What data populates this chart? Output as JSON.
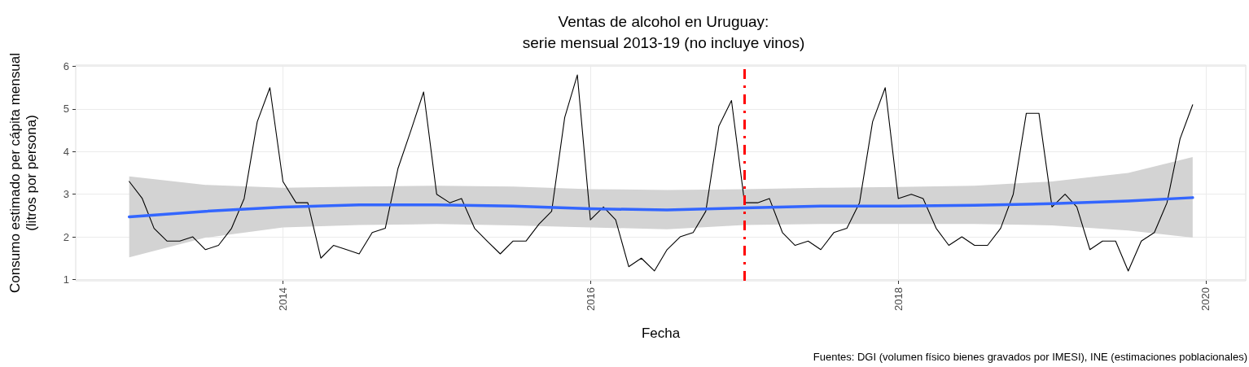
{
  "chart_data": {
    "type": "line",
    "title": "Ventas de alcohol en Uruguay:\nserie mensual 2013-19 (no incluye vinos)",
    "xlabel": "Fecha",
    "ylabel": "Consumo estimado per cápita mensual\n(litros por persona)",
    "annotations": [
      "Fuentes: DGI (volumen físico bienes gravados por IMESI), INE (estimaciones poblacionales)"
    ],
    "x": [
      "2013-01",
      "2013-02",
      "2013-03",
      "2013-04",
      "2013-05",
      "2013-06",
      "2013-07",
      "2013-08",
      "2013-09",
      "2013-10",
      "2013-11",
      "2013-12",
      "2014-01",
      "2014-02",
      "2014-03",
      "2014-04",
      "2014-05",
      "2014-06",
      "2014-07",
      "2014-08",
      "2014-09",
      "2014-10",
      "2014-11",
      "2014-12",
      "2015-01",
      "2015-02",
      "2015-03",
      "2015-04",
      "2015-05",
      "2015-06",
      "2015-07",
      "2015-08",
      "2015-09",
      "2015-10",
      "2015-11",
      "2015-12",
      "2016-01",
      "2016-02",
      "2016-03",
      "2016-04",
      "2016-05",
      "2016-06",
      "2016-07",
      "2016-08",
      "2016-09",
      "2016-10",
      "2016-11",
      "2016-12",
      "2017-01",
      "2017-02",
      "2017-03",
      "2017-04",
      "2017-05",
      "2017-06",
      "2017-07",
      "2017-08",
      "2017-09",
      "2017-10",
      "2017-11",
      "2017-12",
      "2018-01",
      "2018-02",
      "2018-03",
      "2018-04",
      "2018-05",
      "2018-06",
      "2018-07",
      "2018-08",
      "2018-09",
      "2018-10",
      "2018-11",
      "2018-12",
      "2019-01",
      "2019-02",
      "2019-03",
      "2019-04",
      "2019-05",
      "2019-06",
      "2019-07",
      "2019-08",
      "2019-09",
      "2019-10",
      "2019-11",
      "2019-12"
    ],
    "series": [
      {
        "color": "#000000",
        "values": [
          3.3,
          2.9,
          2.2,
          1.9,
          1.9,
          2.0,
          1.7,
          1.8,
          2.2,
          2.9,
          4.7,
          5.5,
          3.3,
          2.8,
          2.8,
          1.5,
          1.8,
          1.7,
          1.6,
          2.1,
          2.2,
          3.6,
          4.5,
          5.4,
          3.0,
          2.8,
          2.9,
          2.2,
          1.9,
          1.6,
          1.9,
          1.9,
          2.3,
          2.6,
          4.8,
          5.8,
          2.4,
          2.7,
          2.4,
          1.3,
          1.5,
          1.2,
          1.7,
          2.0,
          2.1,
          2.6,
          4.6,
          5.2,
          2.8,
          2.8,
          2.9,
          2.1,
          1.8,
          1.9,
          1.7,
          2.1,
          2.2,
          2.8,
          4.7,
          5.5,
          2.9,
          3.0,
          2.9,
          2.2,
          1.8,
          2.0,
          1.8,
          1.8,
          2.2,
          3.0,
          4.9,
          4.9,
          2.7,
          3.0,
          2.7,
          1.7,
          1.9,
          1.9,
          1.2,
          1.9,
          2.1,
          2.8,
          4.3,
          5.1
        ]
      },
      {
        "type": "line",
        "color": "#3366ff",
        "x": [
          "2013-01",
          "2013-07",
          "2014-01",
          "2014-07",
          "2015-01",
          "2015-07",
          "2016-01",
          "2016-07",
          "2017-01",
          "2017-07",
          "2018-01",
          "2018-07",
          "2019-01",
          "2019-07",
          "2019-12"
        ],
        "values": [
          2.47,
          2.6,
          2.7,
          2.75,
          2.75,
          2.72,
          2.66,
          2.63,
          2.68,
          2.72,
          2.72,
          2.74,
          2.78,
          2.84,
          2.92
        ],
        "lower": [
          1.52,
          1.98,
          2.22,
          2.28,
          2.3,
          2.27,
          2.22,
          2.18,
          2.28,
          2.3,
          2.3,
          2.3,
          2.27,
          2.15,
          1.98
        ],
        "upper": [
          3.42,
          3.22,
          3.15,
          3.18,
          3.2,
          3.18,
          3.12,
          3.1,
          3.12,
          3.15,
          3.17,
          3.2,
          3.3,
          3.5,
          3.87
        ]
      }
    ],
    "ref_lines": [
      {
        "axis": "x",
        "value": "2017-01",
        "color": "#ff0000",
        "line_style": "dashed"
      }
    ],
    "xlim": [
      "2012-08-27",
      "2020-04-05"
    ],
    "xticks": [
      {
        "value": "2014",
        "label": "2014"
      },
      {
        "value": "2016",
        "label": "2016"
      },
      {
        "value": "2018",
        "label": "2018"
      },
      {
        "value": "2020",
        "label": "2020"
      }
    ],
    "ylim": [
      0.97,
      6.03
    ],
    "yticks": [
      1,
      2,
      3,
      4,
      5,
      6
    ],
    "grid": true,
    "marker": "none",
    "line_style": "solid"
  }
}
